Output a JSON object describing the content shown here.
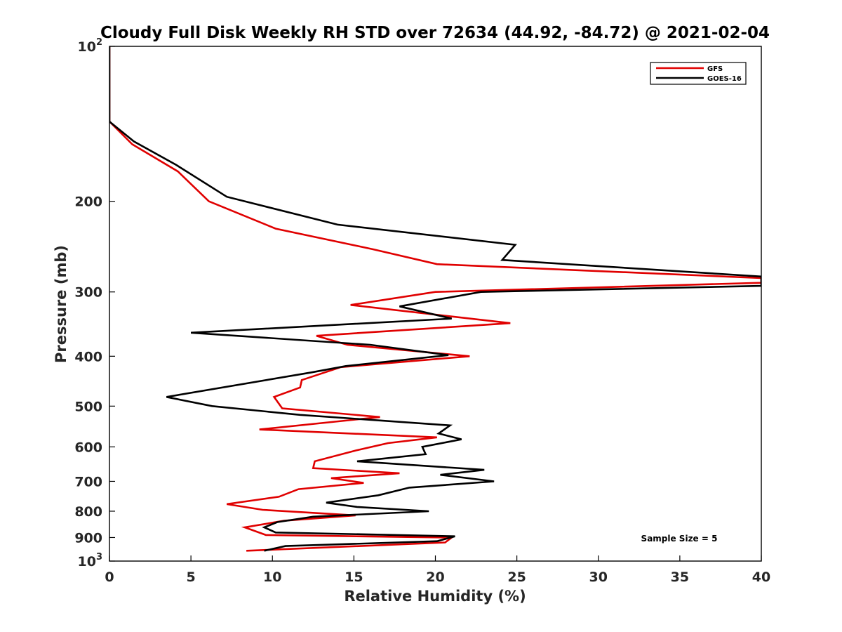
{
  "chart_data": {
    "type": "line",
    "title": "Cloudy Full Disk Weekly RH STD over 72634 (44.92, -84.72) @ 2021-02-04",
    "xlabel": "Relative Humidity (%)",
    "ylabel": "Pressure (mb)",
    "xlim": [
      0,
      40
    ],
    "ylim": [
      100,
      1000
    ],
    "y_scale": "log",
    "y_reversed": true,
    "grid": false,
    "legend_position": "top-right",
    "x_ticks": [
      0,
      5,
      10,
      15,
      20,
      25,
      30,
      35,
      40
    ],
    "y_ticks": [
      {
        "value": 100,
        "base": "10",
        "exp": "2"
      },
      {
        "value": 200,
        "label": "200"
      },
      {
        "value": 300,
        "label": "300"
      },
      {
        "value": 400,
        "label": "400"
      },
      {
        "value": 500,
        "label": "500"
      },
      {
        "value": 600,
        "label": "600"
      },
      {
        "value": 700,
        "label": "700"
      },
      {
        "value": 800,
        "label": "800"
      },
      {
        "value": 900,
        "label": "900"
      },
      {
        "value": 1000,
        "base": "10",
        "exp": "3"
      }
    ],
    "annotation": "Sample Size = 5",
    "series": [
      {
        "name": "GFS",
        "color": "#e00000",
        "points": [
          [
            0,
            100
          ],
          [
            0,
            140
          ],
          [
            1.4,
            155
          ],
          [
            4.2,
            175
          ],
          [
            6.1,
            200
          ],
          [
            10.2,
            226
          ],
          [
            16.2,
            248
          ],
          [
            20.1,
            265
          ],
          [
            40,
            282
          ],
          [
            40,
            288
          ],
          [
            20,
            300
          ],
          [
            14.8,
            318
          ],
          [
            24.6,
            345
          ],
          [
            12.7,
            365
          ],
          [
            14.6,
            380
          ],
          [
            22.1,
            400
          ],
          [
            14.2,
            420
          ],
          [
            11.8,
            445
          ],
          [
            11.7,
            460
          ],
          [
            10.1,
            480
          ],
          [
            10.6,
            505
          ],
          [
            16.6,
            525
          ],
          [
            9.2,
            555
          ],
          [
            20.1,
            575
          ],
          [
            17.1,
            590
          ],
          [
            15.1,
            610
          ],
          [
            12.6,
            640
          ],
          [
            12.5,
            660
          ],
          [
            17.8,
            675
          ],
          [
            13.6,
            690
          ],
          [
            15.6,
            705
          ],
          [
            11.6,
            725
          ],
          [
            10.4,
            750
          ],
          [
            7.2,
            775
          ],
          [
            9.4,
            795
          ],
          [
            15.1,
            815
          ],
          [
            10.7,
            835
          ],
          [
            8.3,
            860
          ],
          [
            9.6,
            890
          ],
          [
            21,
            900
          ],
          [
            20.6,
            920
          ],
          [
            8.4,
            955
          ]
        ]
      },
      {
        "name": "GOES-16",
        "color": "#000000",
        "points": [
          [
            0,
            100
          ],
          [
            0,
            140
          ],
          [
            1.5,
            153
          ],
          [
            4.1,
            170
          ],
          [
            7.2,
            196
          ],
          [
            14,
            222
          ],
          [
            24.9,
            243
          ],
          [
            24.1,
            260
          ],
          [
            40,
            280
          ],
          [
            40,
            292
          ],
          [
            22.8,
            300
          ],
          [
            17.8,
            320
          ],
          [
            21,
            338
          ],
          [
            5,
            360
          ],
          [
            16,
            380
          ],
          [
            20.8,
            398
          ],
          [
            14.5,
            418
          ],
          [
            12.4,
            430
          ],
          [
            3.5,
            480
          ],
          [
            6.3,
            500
          ],
          [
            11.7,
            520
          ],
          [
            20.9,
            545
          ],
          [
            20.2,
            565
          ],
          [
            21.6,
            580
          ],
          [
            19.2,
            600
          ],
          [
            19.4,
            620
          ],
          [
            15.2,
            640
          ],
          [
            23,
            665
          ],
          [
            20.3,
            680
          ],
          [
            23.6,
            700
          ],
          [
            18.4,
            720
          ],
          [
            16.5,
            745
          ],
          [
            13.3,
            770
          ],
          [
            15.2,
            785
          ],
          [
            19.6,
            800
          ],
          [
            12.5,
            820
          ],
          [
            10.3,
            840
          ],
          [
            9.5,
            860
          ],
          [
            10.2,
            880
          ],
          [
            21.2,
            895
          ],
          [
            20.1,
            915
          ],
          [
            10.8,
            935
          ],
          [
            9.5,
            955
          ]
        ]
      }
    ]
  }
}
